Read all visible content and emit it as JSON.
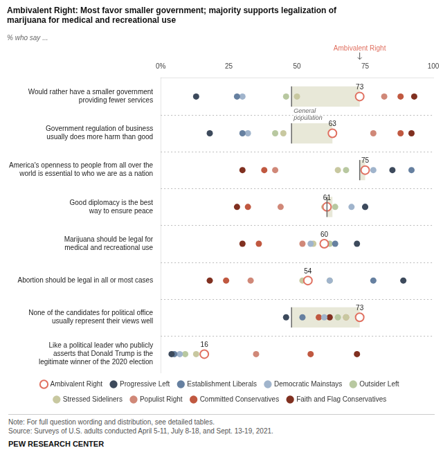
{
  "chart_data": {
    "type": "scatter",
    "title": "Ambivalent Right: Most favor smaller government; majority supports legalization of\nmarijuana for medical and recreational use",
    "subtitle": "% who say ...",
    "orientation": "horizontal",
    "categories": [
      "Would rather have a smaller government\nproviding fewer services",
      "Government regulation of business\nusually does more harm than good",
      "America's openness to people from all over the\nworld is essential to who we are as a nation",
      "Good diplomacy is the best\nway to ensure peace",
      "Marijuana should be legal for\nmedical and recreational use",
      "Abortion should be legal in all or most cases",
      "None of the candidates for political office\nusually represent their views well",
      "Like a political leader who publicly\nasserts that Donald Trump is the\nlegitimate winner of the 2020 election"
    ],
    "series": [
      {
        "name": "Progressive Left",
        "color": "#3d4a5c",
        "marker": "circle",
        "values": [
          13,
          18,
          85,
          75,
          72,
          89,
          46,
          4
        ]
      },
      {
        "name": "Establishment Liberals",
        "color": "#6680a0",
        "marker": "circle",
        "values": [
          28,
          30,
          92,
          75,
          64,
          78,
          52,
          5
        ]
      },
      {
        "name": "Democratic Mainstays",
        "color": "#a0b4cc",
        "marker": "circle",
        "values": [
          30,
          32,
          78,
          70,
          55,
          62,
          60,
          7
        ]
      },
      {
        "name": "Outsider Left",
        "color": "#b8c8a0",
        "marker": "circle",
        "values": [
          46,
          42,
          68,
          64,
          62,
          62,
          65,
          9
        ]
      },
      {
        "name": "Stressed Sideliners",
        "color": "#c8c8a0",
        "marker": "circle",
        "values": [
          50,
          45,
          65,
          60,
          56,
          52,
          68,
          13
        ]
      },
      {
        "name": "Ambivalent Right",
        "color": "#e07060",
        "marker": "open_circle",
        "data_labels": true,
        "values": [
          73,
          63,
          75,
          61,
          60,
          54,
          73,
          16
        ]
      },
      {
        "name": "Populist Right",
        "color": "#d08878",
        "marker": "circle",
        "values": [
          82,
          78,
          42,
          44,
          52,
          33,
          68,
          35
        ]
      },
      {
        "name": "Committed Conservatives",
        "color": "#c05840",
        "marker": "circle",
        "values": [
          88,
          88,
          38,
          32,
          36,
          24,
          58,
          55
        ]
      },
      {
        "name": "Faith and Flag Conservatives",
        "color": "#803020",
        "marker": "circle",
        "values": [
          93,
          92,
          30,
          28,
          30,
          18,
          62,
          72
        ]
      }
    ],
    "ranges": {
      "name": "General\npopulation",
      "color": "#e8e8d8",
      "values": [
        [
          48,
          73
        ],
        [
          48,
          63
        ],
        [
          73,
          75
        ],
        [
          61,
          63
        ],
        null,
        null,
        [
          48,
          73
        ],
        null
      ]
    },
    "annotations": [
      {
        "text": "Ambivalent Right",
        "x": 73,
        "color": "#e07060"
      }
    ],
    "xlim": [
      0,
      100
    ],
    "xticks": [
      {
        "value": 0,
        "label": "0%"
      },
      25,
      50,
      75,
      100
    ],
    "grid": "y",
    "legend": "bottom",
    "note": "Note: For full question wording and distribution, see detailed tables.\nSource: Surveys of U.S. adults conducted April 5-11, July 8-18, and Sept. 13-19, 2021.",
    "footer": "PEW RESEARCH CENTER"
  }
}
